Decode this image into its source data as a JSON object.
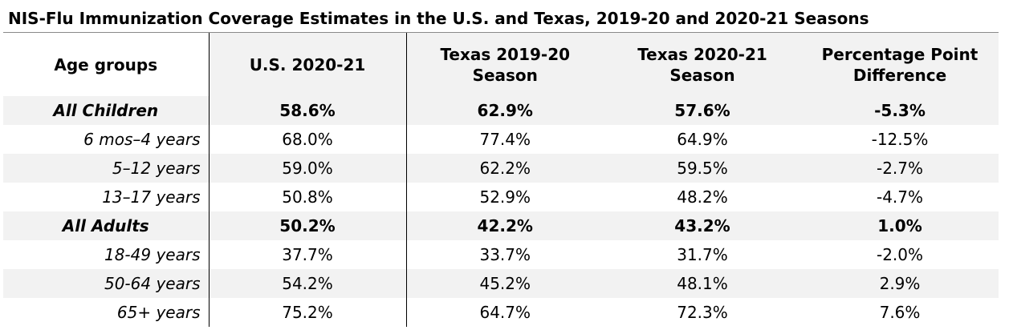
{
  "title": "NIS-Flu Immunization Coverage Estimates in the U.S. and Texas, 2019-20 and 2020-21 Seasons",
  "headers": {
    "age": "Age groups",
    "us": "U.S. 2020-21",
    "tx1920_line1": "Texas 2019-20",
    "tx1920_line2": "Season",
    "tx2021_line1": "Texas 2020-21",
    "tx2021_line2": "Season",
    "diff_line1": "Percentage Point",
    "diff_line2": "Difference"
  },
  "rows": [
    {
      "label": "All Children",
      "us": "58.6%",
      "tx1920": "62.9%",
      "tx2021": "57.6%",
      "diff": "-5.3%"
    },
    {
      "label": "6 mos–4 years",
      "us": "68.0%",
      "tx1920": "77.4%",
      "tx2021": "64.9%",
      "diff": "-12.5%"
    },
    {
      "label": "5–12 years",
      "us": "59.0%",
      "tx1920": "62.2%",
      "tx2021": "59.5%",
      "diff": "-2.7%"
    },
    {
      "label": "13–17 years",
      "us": "50.8%",
      "tx1920": "52.9%",
      "tx2021": "48.2%",
      "diff": "-4.7%"
    },
    {
      "label": "All Adults",
      "us": "50.2%",
      "tx1920": "42.2%",
      "tx2021": "43.2%",
      "diff": "1.0%"
    },
    {
      "label": "18-49 years",
      "us": "37.7%",
      "tx1920": "33.7%",
      "tx2021": "31.7%",
      "diff": "-2.0%"
    },
    {
      "label": "50-64 years",
      "us": "54.2%",
      "tx1920": "45.2%",
      "tx2021": "48.1%",
      "diff": "2.9%"
    },
    {
      "label": "65+ years",
      "us": "75.2%",
      "tx1920": "64.7%",
      "tx2021": "72.3%",
      "diff": "7.6%"
    }
  ]
}
